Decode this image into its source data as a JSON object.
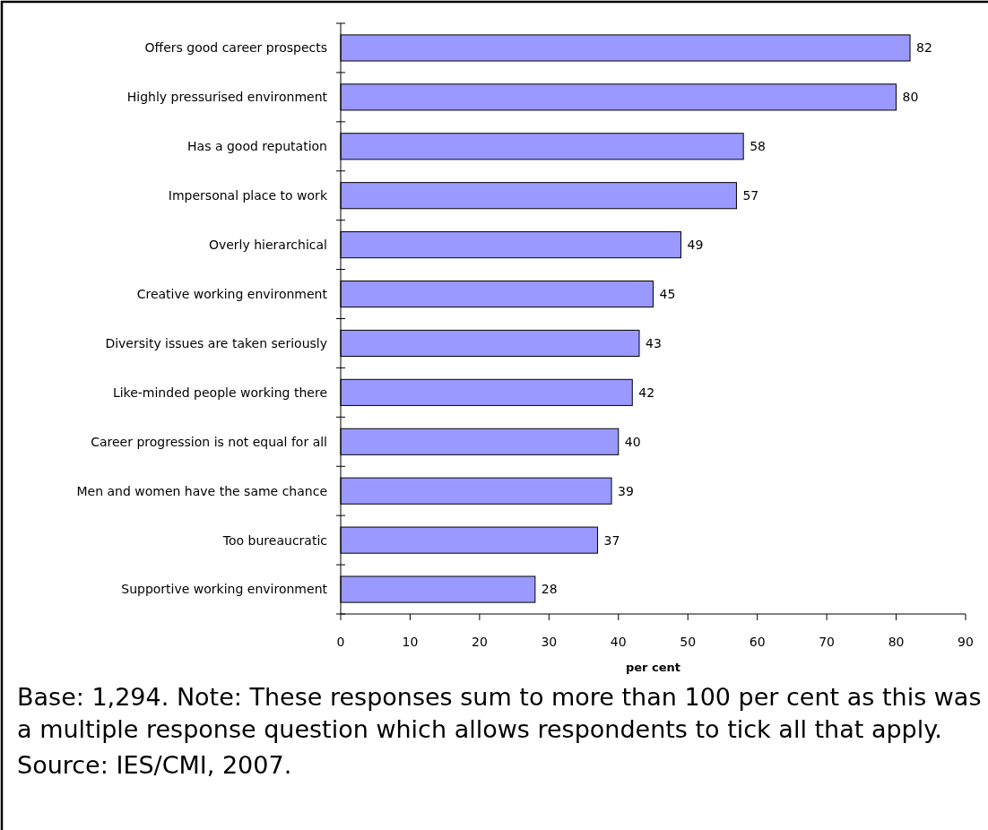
{
  "chart_data": {
    "type": "bar",
    "orientation": "horizontal",
    "categories": [
      "Offers good career prospects",
      "Highly pressurised environment",
      "Has a good reputation",
      "Impersonal place to work",
      "Overly hierarchical",
      "Creative working environment",
      "Diversity issues are taken seriously",
      "Like-minded people working there",
      "Career progression is not equal for all",
      "Men and women have the same chance",
      "Too bureaucratic",
      "Supportive working environment"
    ],
    "values": [
      82,
      80,
      58,
      57,
      49,
      45,
      43,
      42,
      40,
      39,
      37,
      28
    ],
    "color": "#9999ff",
    "xlim": [
      0,
      90
    ],
    "xticks": [
      0,
      10,
      20,
      30,
      40,
      50,
      60,
      70,
      80,
      90
    ],
    "xlabel": "per cent",
    "data_labels": true,
    "annotations": [
      "Base: 1,294. Note: These responses sum to more than 100 per cent as this was a multiple response question which allows respondents to tick all that apply.",
      "Source: IES/CMI, 2007."
    ]
  }
}
